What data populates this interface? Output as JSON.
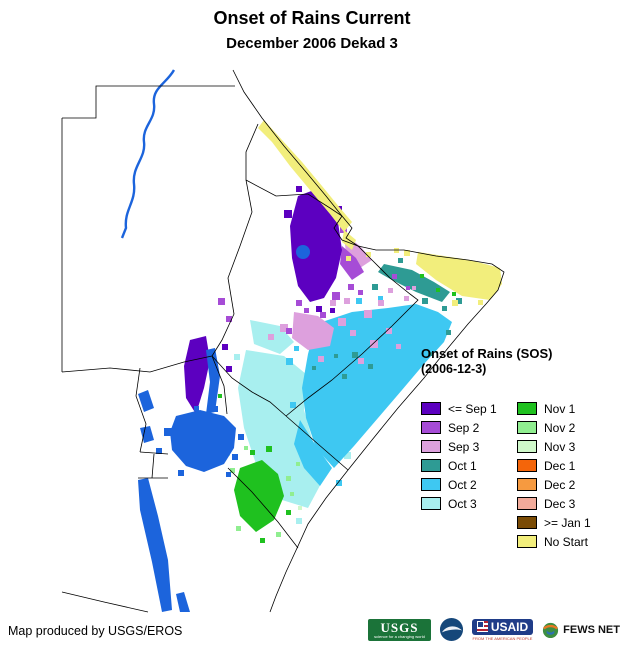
{
  "header": {
    "title": "Onset of Rains Current",
    "subtitle": "December 2006 Dekad 3"
  },
  "legend": {
    "title": "Onset of Rains (SOS)",
    "subtitle": "(2006-12-3)",
    "columns": [
      [
        {
          "label": "<= Sep 1",
          "color": "#5C00C0"
        },
        {
          "label": "Sep 2",
          "color": "#A64CD6"
        },
        {
          "label": "Sep 3",
          "color": "#DDA0DD"
        },
        {
          "label": "Oct 1",
          "color": "#2E9B94"
        },
        {
          "label": "Oct 2",
          "color": "#3EC8F2"
        },
        {
          "label": "Oct 3",
          "color": "#A8EFEF"
        }
      ],
      [
        {
          "label": "Nov 1",
          "color": "#1FC11F"
        },
        {
          "label": "Nov 2",
          "color": "#90EE90"
        },
        {
          "label": "Nov 3",
          "color": "#CFF8CA"
        },
        {
          "label": "Dec 1",
          "color": "#F4650A"
        },
        {
          "label": "Dec 2",
          "color": "#F69A40"
        },
        {
          "label": "Dec 3",
          "color": "#F2AB9B"
        },
        {
          "label": ">= Jan 1",
          "color": "#7A4B05"
        },
        {
          "label": "No Start",
          "color": "#F2EE7C"
        }
      ]
    ]
  },
  "map": {
    "water_color": "#1C64DC",
    "border_color": "#000000"
  },
  "footer": {
    "credit": "Map produced by USGS/EROS"
  },
  "logos": {
    "usgs": {
      "text": "USGS",
      "tagline": "science for a changing world"
    },
    "noaa": {
      "name": "NOAA emblem"
    },
    "usaid": {
      "text": "USAID",
      "tagline": "FROM THE AMERICAN PEOPLE"
    },
    "fewsnet": {
      "text": "FEWS NET"
    }
  }
}
